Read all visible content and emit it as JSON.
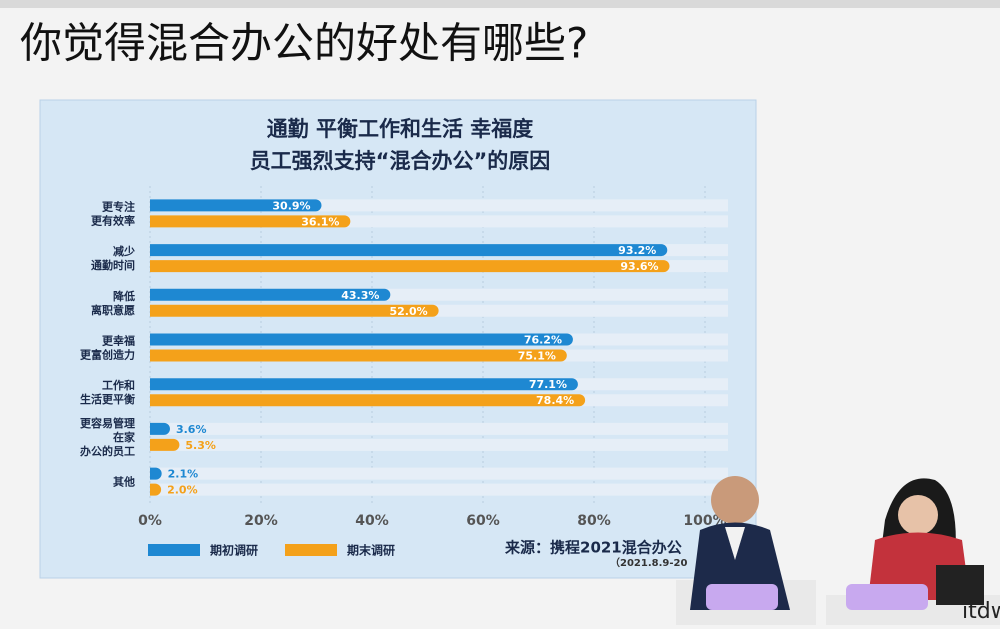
{
  "slide_title": "你觉得混合办公的好处有哪些?",
  "watermark": "itdw.cn",
  "chart_data": {
    "type": "bar",
    "orientation": "horizontal",
    "title": [
      "通勤 平衡工作和生活 幸福度",
      "员工强烈支持“混合办公”的原因"
    ],
    "categories": [
      "更专注\n更有效率",
      "减少\n通勤时间",
      "降低\n离职意愿",
      "更幸福\n更富创造力",
      "工作和\n生活更平衡",
      "更容易管理\n在家\n办公的员工",
      "其他"
    ],
    "series": [
      {
        "name": "期初调研",
        "color": "#1e88d2",
        "values": [
          30.9,
          93.2,
          43.3,
          76.2,
          77.1,
          3.6,
          2.1
        ],
        "value_labels": [
          "30.9%",
          "93.2%",
          "43.3%",
          "76.2%",
          "77.1%",
          "3.6%",
          "2.1%"
        ]
      },
      {
        "name": "期末调研",
        "color": "#f4a11a",
        "values": [
          36.1,
          93.6,
          52.0,
          75.1,
          78.4,
          5.3,
          2.0
        ],
        "value_labels": [
          "36.1%",
          "93.6%",
          "52.0%",
          "75.1%",
          "78.4%",
          "5.3%",
          "2.0%"
        ]
      }
    ],
    "xlim": [
      0,
      100
    ],
    "xticks": [
      {
        "value": 0,
        "label": "0%"
      },
      {
        "value": 20,
        "label": "20%"
      },
      {
        "value": 40,
        "label": "40%"
      },
      {
        "value": 60,
        "label": "60%"
      },
      {
        "value": 80,
        "label": "80%"
      },
      {
        "value": 100,
        "label": "100%"
      }
    ],
    "grid": true,
    "source": [
      "来源：携程2021混合办公",
      "（2021.8.9-20"
    ]
  }
}
